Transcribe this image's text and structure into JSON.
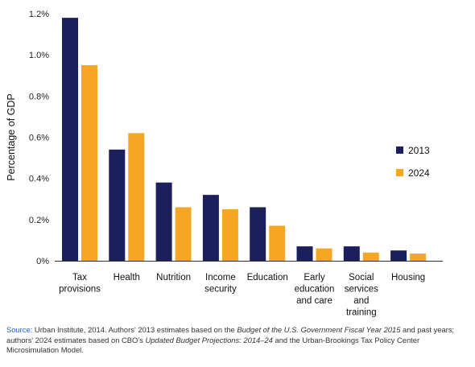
{
  "chart_data": {
    "type": "bar",
    "ylabel": "Percentage of GDP",
    "xlabel": "",
    "ylim": [
      0,
      1.2
    ],
    "yticks": [
      "0%",
      "0.2%",
      "0.4%",
      "0.6%",
      "0.8%",
      "1.0%",
      "1.2%"
    ],
    "ytick_values": [
      0,
      0.2,
      0.4,
      0.6,
      0.8,
      1.0,
      1.2
    ],
    "categories": [
      [
        "Tax",
        "provisions"
      ],
      [
        "Health"
      ],
      [
        "Nutrition"
      ],
      [
        "Income",
        "security"
      ],
      [
        "Education"
      ],
      [
        "Early",
        "education",
        "and care"
      ],
      [
        "Social",
        "services",
        "and",
        "training"
      ],
      [
        "Housing"
      ]
    ],
    "series": [
      {
        "name": "2013",
        "color": "#1b1f5c",
        "values": [
          1.18,
          0.54,
          0.38,
          0.32,
          0.26,
          0.07,
          0.07,
          0.05
        ]
      },
      {
        "name": "2024",
        "color": "#f5a623",
        "values": [
          0.95,
          0.62,
          0.26,
          0.25,
          0.17,
          0.06,
          0.04,
          0.035
        ]
      }
    ],
    "legend_position": "right",
    "grid": false
  },
  "source": {
    "label": "Source:",
    "part1": " Urban Institute, 2014. Authors' 2013 estimates based on the ",
    "italic1": "Budget of the U.S. Government Fiscal Year 2015",
    "part2": " and past years; authors' 2024 estimates based on CBO's ",
    "italic2": "Updated Budget Projections: 2014–24",
    "part3": " and the Urban-Brookings Tax Policy Center Microsimulation Model."
  }
}
